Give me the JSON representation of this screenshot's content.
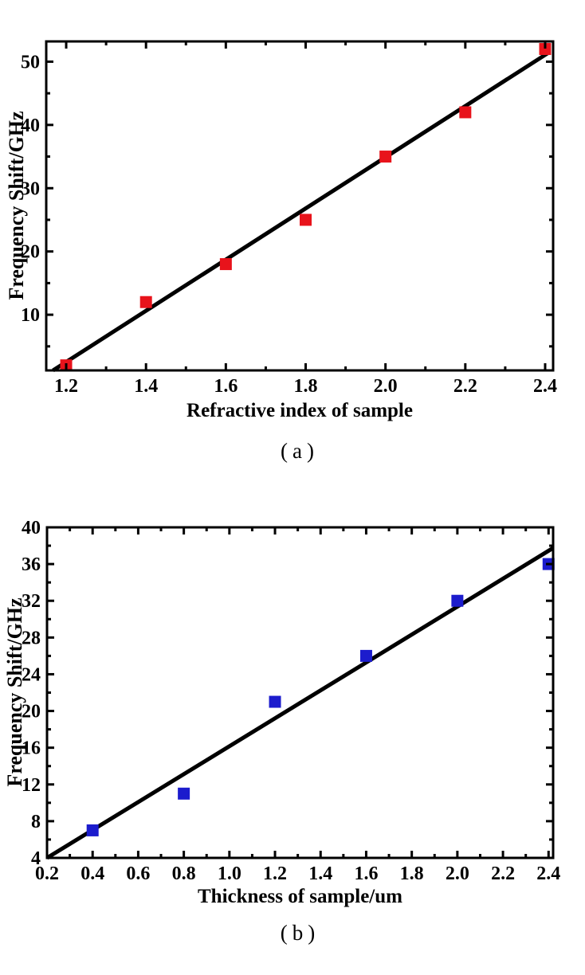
{
  "page": {
    "background": "#ffffff",
    "text_color": "#000000"
  },
  "chart_data": [
    {
      "type": "scatter",
      "caption": "(a)",
      "xlabel": "Refractive index of sample",
      "ylabel": "Frequency Shift/GHz",
      "marker_shape": "square",
      "marker_color": "#e8131b",
      "fit_line_color": "#000000",
      "axis_color": "#000000",
      "grid": false,
      "legend": "none",
      "x": [
        1.2,
        1.4,
        1.6,
        1.8,
        2.0,
        2.2,
        2.4
      ],
      "y": [
        2,
        12,
        18,
        25,
        35,
        42,
        52
      ],
      "fit_line": {
        "x1": 1.167,
        "y1": 1.2,
        "x2": 2.408,
        "y2": 51.4
      },
      "xlim": [
        1.15,
        2.42
      ],
      "ylim": [
        1.2,
        53.2
      ],
      "x_major_ticks": [
        1.2,
        1.4,
        1.6,
        1.8,
        2.0,
        2.2,
        2.4
      ],
      "x_tick_labels": [
        "1.2",
        "1.4",
        "1.6",
        "1.8",
        "2.0",
        "2.2",
        "2.4"
      ],
      "x_minor_step": 0.1,
      "y_major_ticks": [
        10,
        20,
        30,
        40,
        50
      ],
      "y_tick_labels": [
        "10",
        "20",
        "30",
        "40",
        "50"
      ],
      "y_minor_step": 5
    },
    {
      "type": "scatter",
      "caption": "(b)",
      "xlabel": "Thickness of sample/um",
      "ylabel": "Frequency Shift/GHz",
      "marker_shape": "square",
      "marker_color": "#1c1ccd",
      "fit_line_color": "#000000",
      "axis_color": "#000000",
      "grid": false,
      "legend": "none",
      "x": [
        0.4,
        0.8,
        1.2,
        1.6,
        2.0,
        2.4
      ],
      "y": [
        7,
        11,
        21,
        26,
        32,
        36
      ],
      "fit_line": {
        "x1": 0.2,
        "y1": 4,
        "x2": 2.42,
        "y2": 37.75
      },
      "xlim": [
        0.2,
        2.42
      ],
      "ylim": [
        4,
        40
      ],
      "x_major_ticks": [
        0.2,
        0.4,
        0.6,
        0.8,
        1.0,
        1.2,
        1.4,
        1.6,
        1.8,
        2.0,
        2.2,
        2.4
      ],
      "x_tick_labels": [
        "0.2",
        "0.4",
        "0.6",
        "0.8",
        "1.0",
        "1.2",
        "1.4",
        "1.6",
        "1.8",
        "2.0",
        "2.2",
        "2.4"
      ],
      "x_minor_step": 0.1,
      "y_major_ticks": [
        4,
        8,
        12,
        16,
        20,
        24,
        28,
        32,
        36,
        40
      ],
      "y_tick_labels": [
        "4",
        "8",
        "12",
        "16",
        "20",
        "24",
        "28",
        "32",
        "36",
        "40"
      ],
      "y_minor_step": 2
    }
  ]
}
